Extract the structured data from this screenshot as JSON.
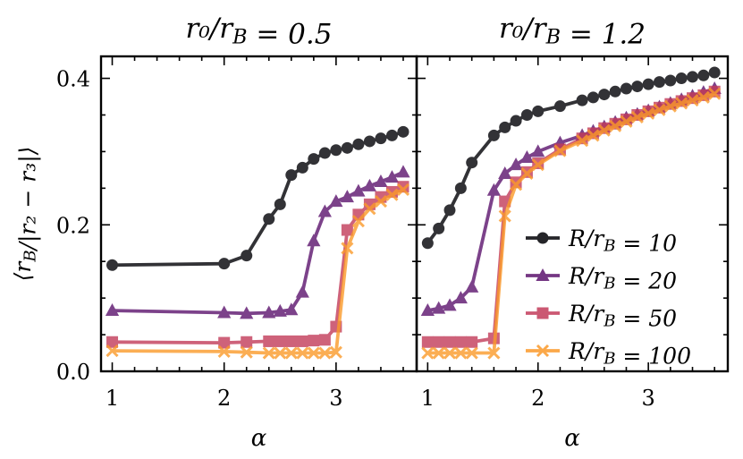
{
  "chart_data": [
    {
      "type": "line",
      "title": "r₀/r_B = 0.5",
      "xlabel": "α",
      "ylabel": "⟨r_B/|r₂ − r₃|⟩",
      "xlim": [
        0.9,
        3.72
      ],
      "ylim": [
        0.0,
        0.43
      ],
      "xticks": [
        1,
        2,
        3
      ],
      "xtick_labels": [
        "1",
        "2",
        "3"
      ],
      "yticks": [
        0.0,
        0.2,
        0.4
      ],
      "ytick_labels": [
        "0.0",
        "0.2",
        "0.4"
      ],
      "series": [
        {
          "name": "R/r_B = 10",
          "color": "#000004",
          "marker": "circle",
          "x": [
            1.0,
            2.0,
            2.2,
            2.4,
            2.5,
            2.6,
            2.7,
            2.8,
            2.9,
            3.0,
            3.1,
            3.2,
            3.3,
            3.4,
            3.5,
            3.6
          ],
          "y": [
            0.145,
            0.147,
            0.158,
            0.208,
            0.228,
            0.268,
            0.278,
            0.29,
            0.298,
            0.302,
            0.305,
            0.31,
            0.314,
            0.318,
            0.322,
            0.327
          ]
        },
        {
          "name": "R/r_B = 20",
          "color": "#5c136e",
          "marker": "triangle",
          "x": [
            1.0,
            2.0,
            2.2,
            2.4,
            2.5,
            2.6,
            2.7,
            2.8,
            2.9,
            3.0,
            3.1,
            3.2,
            3.3,
            3.4,
            3.5,
            3.6
          ],
          "y": [
            0.083,
            0.08,
            0.079,
            0.08,
            0.082,
            0.084,
            0.108,
            0.178,
            0.218,
            0.232,
            0.238,
            0.246,
            0.253,
            0.259,
            0.265,
            0.272
          ]
        },
        {
          "name": "R/r_B = 50",
          "color": "#c23b5a",
          "marker": "square",
          "x": [
            1.0,
            2.0,
            2.2,
            2.4,
            2.5,
            2.6,
            2.7,
            2.8,
            2.9,
            3.0,
            3.1,
            3.2,
            3.3,
            3.4,
            3.5,
            3.6
          ],
          "y": [
            0.04,
            0.039,
            0.04,
            0.041,
            0.041,
            0.041,
            0.041,
            0.042,
            0.043,
            0.061,
            0.193,
            0.214,
            0.228,
            0.238,
            0.245,
            0.252
          ]
        },
        {
          "name": "R/r_B = 100",
          "color": "#fb9a2a",
          "marker": "x",
          "x": [
            1.0,
            2.0,
            2.2,
            2.4,
            2.5,
            2.6,
            2.7,
            2.8,
            2.9,
            3.0,
            3.1,
            3.2,
            3.3,
            3.4,
            3.5,
            3.6
          ],
          "y": [
            0.028,
            0.027,
            0.026,
            0.025,
            0.025,
            0.025,
            0.025,
            0.025,
            0.025,
            0.026,
            0.168,
            0.205,
            0.222,
            0.232,
            0.241,
            0.248
          ]
        }
      ]
    },
    {
      "type": "line",
      "title": "r₀/r_B = 1.2",
      "xlabel": "α",
      "xlim": [
        0.9,
        3.72
      ],
      "ylim": [
        0.0,
        0.43
      ],
      "xticks": [
        1,
        2,
        3
      ],
      "xtick_labels": [
        "1",
        "2",
        "3"
      ],
      "yticks": [
        0.0,
        0.2,
        0.4
      ],
      "legend": "center-right",
      "series": [
        {
          "name": "R/r_B = 10",
          "color": "#000004",
          "marker": "circle",
          "x": [
            1.0,
            1.1,
            1.2,
            1.3,
            1.4,
            1.6,
            1.7,
            1.8,
            1.9,
            2.0,
            2.2,
            2.4,
            2.5,
            2.6,
            2.7,
            2.8,
            2.9,
            3.0,
            3.1,
            3.2,
            3.3,
            3.4,
            3.5,
            3.6
          ],
          "y": [
            0.175,
            0.195,
            0.22,
            0.25,
            0.285,
            0.322,
            0.333,
            0.342,
            0.35,
            0.355,
            0.362,
            0.37,
            0.374,
            0.378,
            0.382,
            0.386,
            0.389,
            0.392,
            0.395,
            0.397,
            0.4,
            0.402,
            0.404,
            0.408
          ]
        },
        {
          "name": "R/r_B = 20",
          "color": "#5c136e",
          "marker": "triangle",
          "x": [
            1.0,
            1.1,
            1.2,
            1.3,
            1.4,
            1.6,
            1.7,
            1.8,
            1.9,
            2.0,
            2.2,
            2.4,
            2.5,
            2.6,
            2.7,
            2.8,
            2.9,
            3.0,
            3.1,
            3.2,
            3.3,
            3.4,
            3.5,
            3.6
          ],
          "y": [
            0.083,
            0.086,
            0.09,
            0.1,
            0.115,
            0.247,
            0.27,
            0.282,
            0.292,
            0.3,
            0.312,
            0.322,
            0.328,
            0.334,
            0.34,
            0.346,
            0.351,
            0.356,
            0.361,
            0.366,
            0.371,
            0.376,
            0.381,
            0.386
          ]
        },
        {
          "name": "R/r_B = 50",
          "color": "#c23b5a",
          "marker": "square",
          "x": [
            1.0,
            1.1,
            1.2,
            1.3,
            1.4,
            1.6,
            1.7,
            1.8,
            1.9,
            2.0,
            2.2,
            2.4,
            2.5,
            2.6,
            2.7,
            2.8,
            2.9,
            3.0,
            3.1,
            3.2,
            3.3,
            3.4,
            3.5,
            3.6
          ],
          "y": [
            0.04,
            0.04,
            0.04,
            0.04,
            0.04,
            0.045,
            0.232,
            0.258,
            0.272,
            0.284,
            0.303,
            0.318,
            0.325,
            0.332,
            0.338,
            0.344,
            0.35,
            0.355,
            0.36,
            0.365,
            0.369,
            0.373,
            0.377,
            0.382
          ]
        },
        {
          "name": "R/r_B = 100",
          "color": "#fb9a2a",
          "marker": "x",
          "x": [
            1.0,
            1.1,
            1.2,
            1.3,
            1.4,
            1.6,
            1.7,
            1.8,
            1.9,
            2.0,
            2.2,
            2.4,
            2.5,
            2.6,
            2.7,
            2.8,
            2.9,
            3.0,
            3.1,
            3.2,
            3.3,
            3.4,
            3.5,
            3.6
          ],
          "y": [
            0.025,
            0.025,
            0.025,
            0.025,
            0.025,
            0.025,
            0.212,
            0.255,
            0.27,
            0.282,
            0.301,
            0.315,
            0.322,
            0.329,
            0.335,
            0.341,
            0.347,
            0.352,
            0.357,
            0.362,
            0.366,
            0.37,
            0.374,
            0.379
          ]
        }
      ]
    }
  ]
}
